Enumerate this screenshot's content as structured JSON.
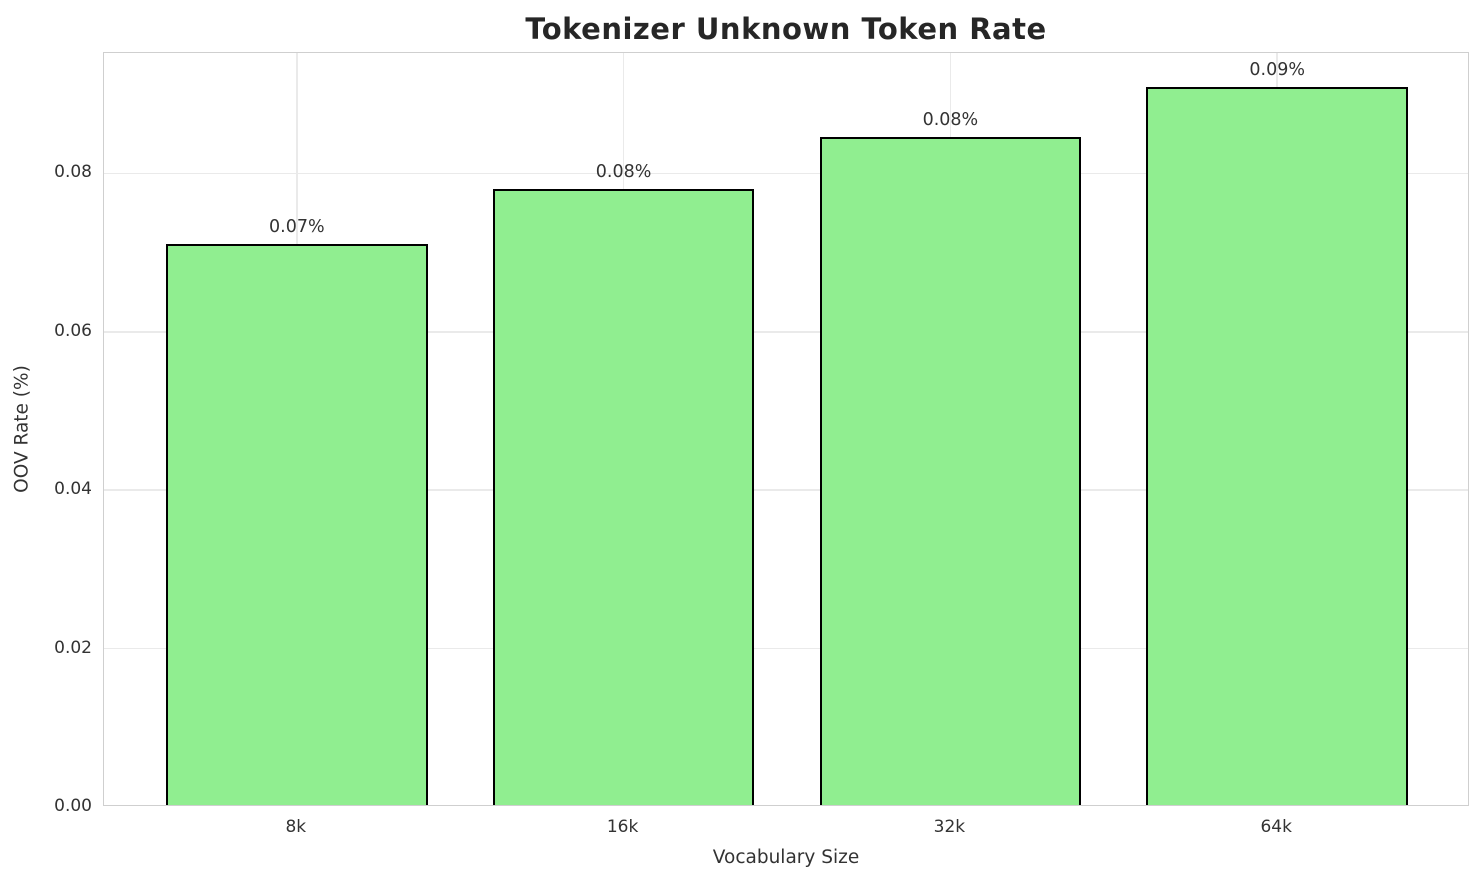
{
  "chart_data": {
    "type": "bar",
    "title": "Tokenizer Unknown Token Rate",
    "xlabel": "Vocabulary Size",
    "ylabel": "OOV Rate (%)",
    "categories": [
      "8k",
      "16k",
      "32k",
      "64k"
    ],
    "values": [
      0.0708,
      0.0778,
      0.0844,
      0.0906
    ],
    "bar_labels": [
      "0.07%",
      "0.08%",
      "0.08%",
      "0.09%"
    ],
    "ytick_labels": [
      "0.00",
      "0.02",
      "0.04",
      "0.06",
      "0.08"
    ],
    "ytick_values": [
      0.0,
      0.02,
      0.04,
      0.06,
      0.08
    ],
    "ylim": [
      0,
      0.0952
    ],
    "grid": true,
    "legend": false,
    "bar_color": "#90EE90",
    "bar_edge_color": "#000000",
    "grid_color": "#eaeaea",
    "spine_color": "#cfcfcf",
    "title_color": "#262626",
    "tick_color": "#333333",
    "background_color": "#ffffff"
  }
}
